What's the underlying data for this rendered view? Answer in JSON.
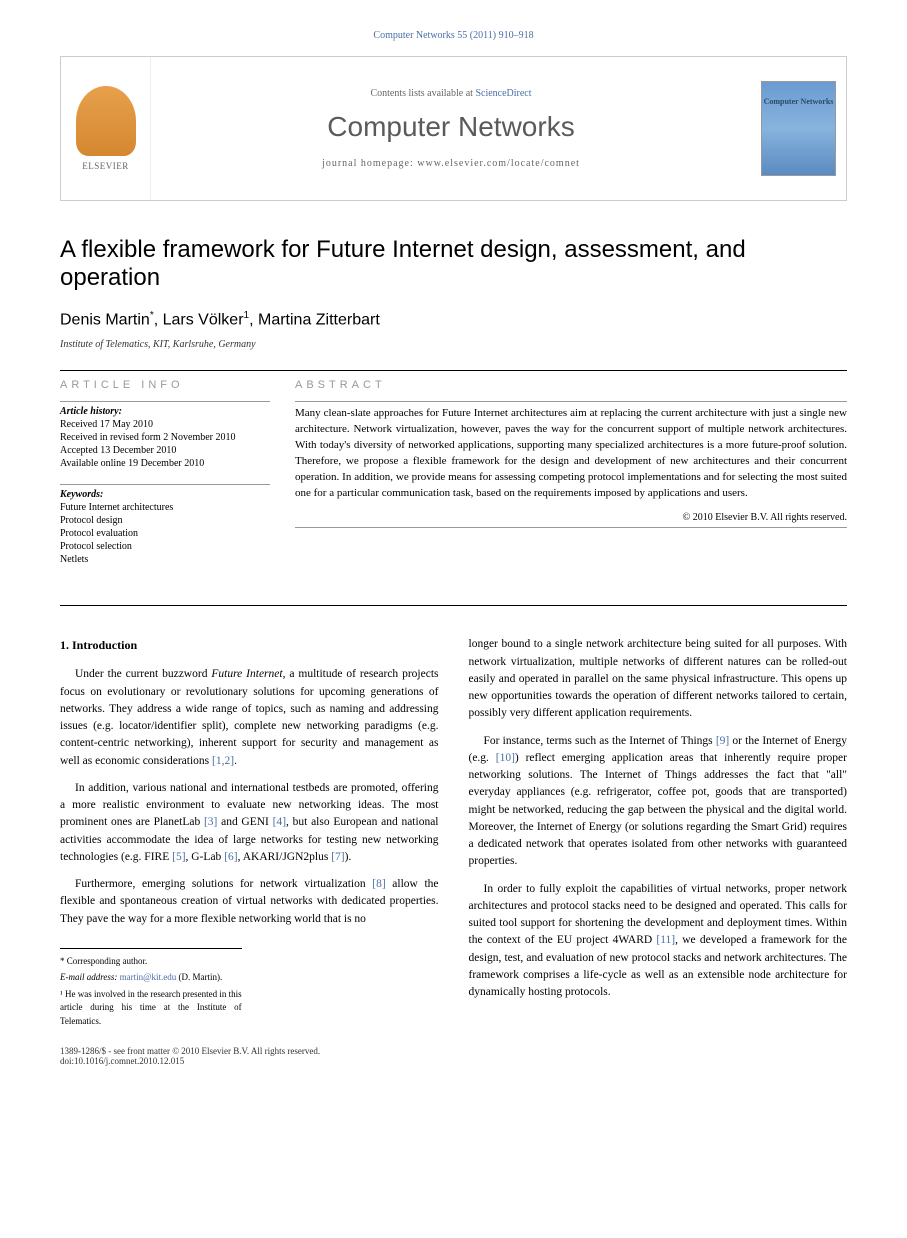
{
  "header_citation": "Computer Networks 55 (2011) 910–918",
  "journal_header": {
    "contents_prefix": "Contents lists available at ",
    "contents_link": "ScienceDirect",
    "journal_name": "Computer Networks",
    "homepage_label": "journal homepage: www.elsevier.com/locate/comnet",
    "publisher": "ELSEVIER",
    "cover_label": "Computer Networks"
  },
  "article": {
    "title": "A flexible framework for Future Internet design, assessment, and operation",
    "authors_html": "Denis Martin *, Lars Völker ¹, Martina Zitterbart",
    "author1": "Denis Martin",
    "author1_sup": "*",
    "author2": "Lars Völker",
    "author2_sup": "1",
    "author3": "Martina Zitterbart",
    "affiliation": "Institute of Telematics, KIT, Karlsruhe, Germany"
  },
  "info": {
    "heading": "ARTICLE INFO",
    "history_label": "Article history:",
    "history": [
      "Received 17 May 2010",
      "Received in revised form 2 November 2010",
      "Accepted 13 December 2010",
      "Available online 19 December 2010"
    ],
    "keywords_label": "Keywords:",
    "keywords": [
      "Future Internet architectures",
      "Protocol design",
      "Protocol evaluation",
      "Protocol selection",
      "Netlets"
    ]
  },
  "abstract": {
    "heading": "ABSTRACT",
    "text": "Many clean-slate approaches for Future Internet architectures aim at replacing the current architecture with just a single new architecture. Network virtualization, however, paves the way for the concurrent support of multiple network architectures. With today's diversity of networked applications, supporting many specialized architectures is a more future-proof solution. Therefore, we propose a flexible framework for the design and development of new architectures and their concurrent operation. In addition, we provide means for assessing competing protocol implementations and for selecting the most suited one for a particular communication task, based on the requirements imposed by applications and users.",
    "copyright": "© 2010 Elsevier B.V. All rights reserved."
  },
  "body": {
    "section1_heading": "1. Introduction",
    "col1_paras": [
      "Under the current buzzword Future Internet, a multitude of research projects focus on evolutionary or revolutionary solutions for upcoming generations of networks. They address a wide range of topics, such as naming and addressing issues (e.g. locator/identifier split), complete new networking paradigms (e.g. content-centric networking), inherent support for security and management as well as economic considerations [1,2].",
      "In addition, various national and international testbeds are promoted, offering a more realistic environment to evaluate new networking ideas. The most prominent ones are PlanetLab [3] and GENI [4], but also European and national activities accommodate the idea of large networks for testing new networking technologies (e.g. FIRE [5], G-Lab [6], AKARI/JGN2plus [7]).",
      "Furthermore, emerging solutions for network virtualization [8] allow the flexible and spontaneous creation of virtual networks with dedicated properties. They pave the way for a more flexible networking world that is no"
    ],
    "col2_paras": [
      "longer bound to a single network architecture being suited for all purposes. With network virtualization, multiple networks of different natures can be rolled-out easily and operated in parallel on the same physical infrastructure. This opens up new opportunities towards the operation of different networks tailored to certain, possibly very different application requirements.",
      "For instance, terms such as the Internet of Things [9] or the Internet of Energy (e.g. [10]) reflect emerging application areas that inherently require proper networking solutions. The Internet of Things addresses the fact that \"all\" everyday appliances (e.g. refrigerator, coffee pot, goods that are transported) might be networked, reducing the gap between the physical and the digital world. Moreover, the Internet of Energy (or solutions regarding the Smart Grid) requires a dedicated network that operates isolated from other networks with guaranteed properties.",
      "In order to fully exploit the capabilities of virtual networks, proper network architectures and protocol stacks need to be designed and operated. This calls for suited tool support for shortening the development and deployment times. Within the context of the EU project 4WARD [11], we developed a framework for the design, test, and evaluation of new protocol stacks and network architectures. The framework comprises a life-cycle as well as an extensible node architecture for dynamically hosting protocols."
    ]
  },
  "footnotes": {
    "corresponding": "* Corresponding author.",
    "email_label": "E-mail address: ",
    "email": "martin@kit.edu",
    "email_suffix": " (D. Martin).",
    "note1": "¹ He was involved in the research presented in this article during his time at the Institute of Telematics."
  },
  "bottom": {
    "issn": "1389-1286/$ - see front matter © 2010 Elsevier B.V. All rights reserved.",
    "doi": "doi:10.1016/j.comnet.2010.12.015"
  },
  "refs": {
    "r12": "[1,2]",
    "r3": "[3]",
    "r4": "[4]",
    "r5": "[5]",
    "r6": "[6]",
    "r7": "[7]",
    "r8": "[8]",
    "r9": "[9]",
    "r10": "[10]",
    "r11": "[11]"
  }
}
